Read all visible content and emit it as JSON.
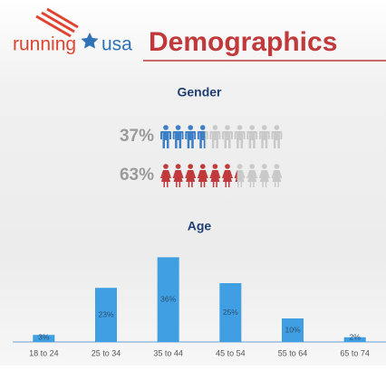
{
  "logo": {
    "left": "running",
    "right": "usa"
  },
  "title": "Demographics",
  "gender": {
    "title": "Gender",
    "rows": [
      {
        "icon": "male",
        "value": 37,
        "value_label": "37%",
        "color": "#3d7fc6"
      },
      {
        "icon": "female",
        "value": 63,
        "value_label": "63%",
        "color": "#c0393b"
      }
    ]
  },
  "chart_data": {
    "type": "bar",
    "title": "Age",
    "categories": [
      "18 to 24",
      "25 to 34",
      "35 to 44",
      "45 to 54",
      "55 to 64",
      "65 to 74"
    ],
    "values": [
      3,
      23,
      36,
      25,
      10,
      2
    ],
    "value_labels": [
      "3%",
      "23%",
      "36%",
      "25%",
      "10%",
      "2%"
    ],
    "color": "#3f9fe2"
  }
}
